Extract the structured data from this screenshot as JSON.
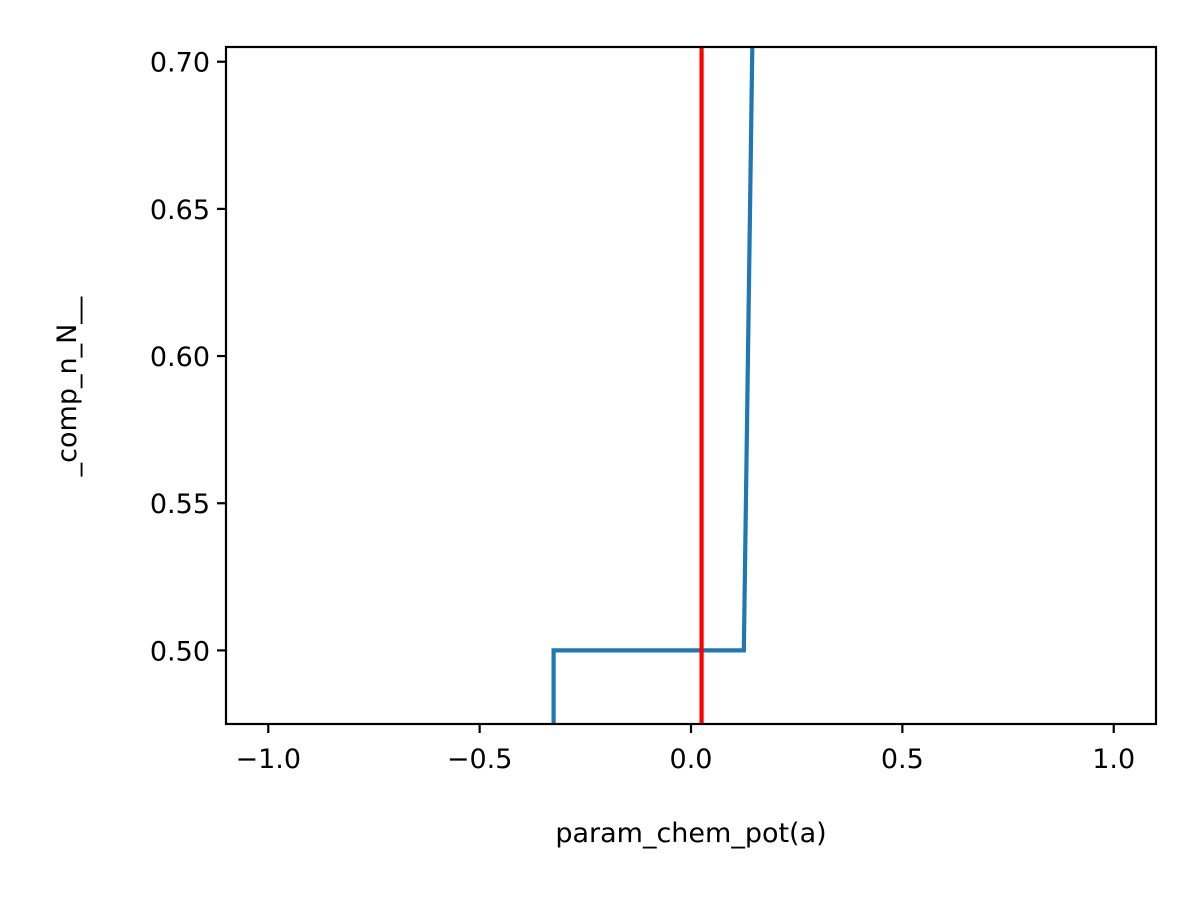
{
  "chart_data": {
    "type": "line",
    "title": "",
    "xlabel": "param_chem_pot(a)",
    "ylabel": "_comp_n_N__",
    "xlim": [
      -1.1,
      1.1
    ],
    "ylim": [
      0.475,
      0.705
    ],
    "xticks": [
      -1.0,
      -0.5,
      0.0,
      0.5,
      1.0
    ],
    "xtick_labels": [
      "−1.0",
      "−0.5",
      "0.0",
      "0.5",
      "1.0"
    ],
    "yticks": [
      0.5,
      0.55,
      0.6,
      0.65,
      0.7
    ],
    "ytick_labels": [
      "0.50",
      "0.55",
      "0.60",
      "0.65",
      "0.70"
    ],
    "grid": false,
    "legend": "none",
    "series": [
      {
        "color": "#1f77b4",
        "x": [
          -0.325,
          -0.325,
          0.125,
          0.145
        ],
        "y": [
          0.475,
          0.5,
          0.5,
          0.705
        ]
      }
    ],
    "vlines": [
      {
        "x": 0.025,
        "color": "#ff0000"
      }
    ]
  }
}
